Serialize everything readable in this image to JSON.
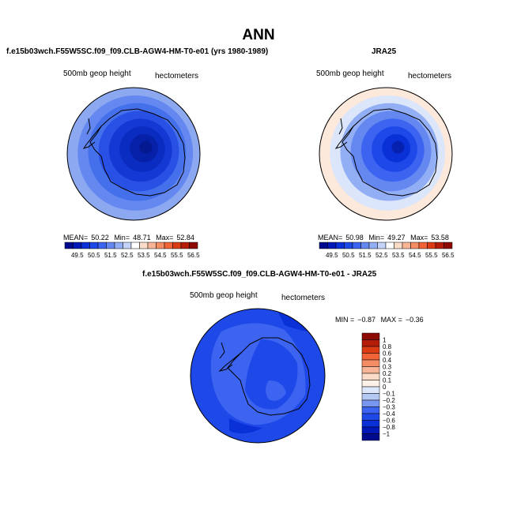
{
  "title": "ANN",
  "panels": {
    "model": {
      "title": "f.e15b03wch.F55W5SC.f09_f09.CLB-AGW4-HM-T0-e01 (yrs 1980-1989)",
      "variable": "500mb geop height",
      "units": "hectometers",
      "stats": {
        "mean_label": "MEAN=",
        "mean": "50.22",
        "min_label": "Min=",
        "min": "48.71",
        "max_label": "Max=",
        "max": "52.84"
      }
    },
    "obs": {
      "title": "JRA25",
      "variable": "500mb geop height",
      "units": "hectometers",
      "stats": {
        "mean_label": "MEAN=",
        "mean": "50.98",
        "min_label": "Min=",
        "min": "49.27",
        "max_label": "Max=",
        "max": "53.58"
      }
    },
    "diff": {
      "title": "f.e15b03wch.F55W5SC.f09_f09.CLB-AGW4-HM-T0-e01 - JRA25",
      "variable": "500mb geop height",
      "units": "hectometers",
      "stats": {
        "min_label": "MIN =",
        "min": "−0.87",
        "max_label": "MAX =",
        "max": "−0.36"
      }
    }
  },
  "colorbar_abs": {
    "labels": [
      "49.5",
      "50.5",
      "51.5",
      "52.5",
      "53.5",
      "54.5",
      "55.5",
      "56.5"
    ],
    "colors": [
      "#000a8c",
      "#0018b8",
      "#0a30d8",
      "#1e48e8",
      "#3c64f0",
      "#6488f0",
      "#92aef4",
      "#c4d4f8",
      "#ffffff",
      "#fadcc8",
      "#f8b496",
      "#f48c64",
      "#f06438",
      "#dc3c14",
      "#b41e08",
      "#8c0a02"
    ]
  },
  "colorbar_diff": {
    "labels": [
      "1",
      "0.8",
      "0.6",
      "0.4",
      "0.3",
      "0.2",
      "0.1",
      "0",
      "−0.1",
      "−0.2",
      "−0.3",
      "−0.4",
      "−0.6",
      "−0.8",
      "−1"
    ],
    "colors": [
      "#8c0a02",
      "#b41e08",
      "#dc3c14",
      "#f06438",
      "#f48c64",
      "#f8b496",
      "#fadcc8",
      "#fdf0e6",
      "#dce6fa",
      "#b4c8f4",
      "#7896f0",
      "#3c64f0",
      "#1e48e8",
      "#0a30d8",
      "#0018b8",
      "#000a8c"
    ]
  },
  "map_data": {
    "region": "Antarctica / Southern Hemisphere polar stereographic",
    "model_fill_colors": [
      "#8ca8f0",
      "#6488f0",
      "#4470ec",
      "#2850e4",
      "#1438d4",
      "#0a2cc0",
      "#0620a8",
      "#041890"
    ],
    "obs_fill_colors": [
      "#fde8dc",
      "#dce6fa",
      "#92aef4",
      "#6488f0",
      "#3c64f0",
      "#1e48e8",
      "#0a30d8",
      "#0620b0"
    ],
    "diff_fill_colors": [
      "#1e48e8",
      "#3c64f0",
      "#0a30d8"
    ]
  }
}
